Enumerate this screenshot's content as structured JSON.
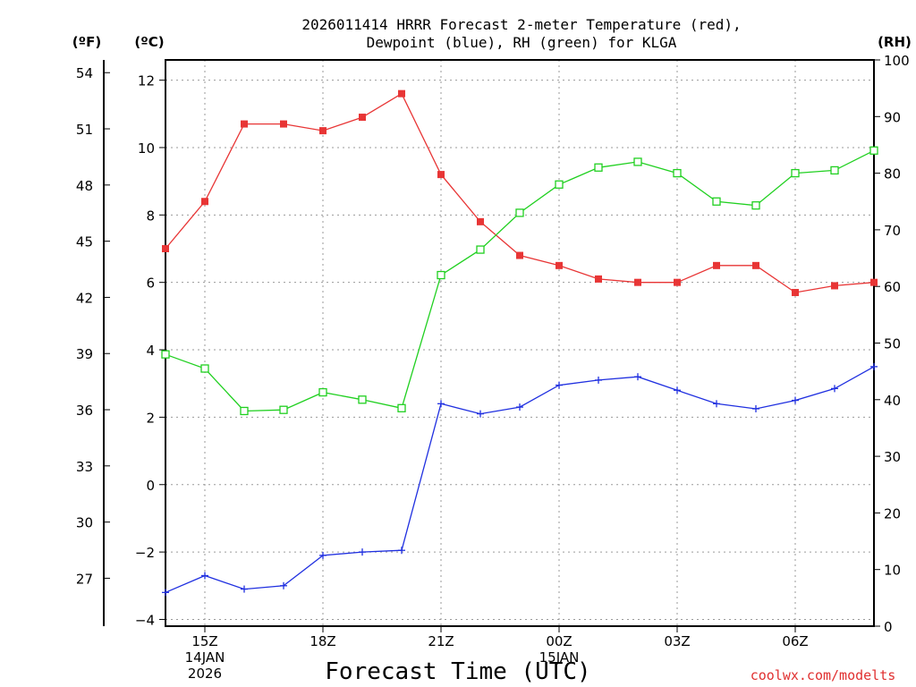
{
  "chart_data": {
    "type": "line",
    "title_lines": [
      "2026011414 HRRR Forecast 2-meter Temperature (red),",
      "Dewpoint (blue), RH (green) for KLGA"
    ],
    "xlabel": "Forecast Time (UTC)",
    "credit": "coolwx.com/modelts",
    "units": {
      "fahrenheit": "(ºF)",
      "celsius": "(ºC)",
      "rh": "(RH)"
    },
    "x_hours": [
      14,
      15,
      16,
      17,
      18,
      19,
      20,
      21,
      22,
      23,
      24,
      25,
      26,
      27,
      28,
      29,
      30,
      31,
      32
    ],
    "xlim": [
      14,
      32
    ],
    "x_ticks": [
      {
        "hour": 15,
        "lines": [
          "15Z",
          "14JAN",
          "2026"
        ]
      },
      {
        "hour": 18,
        "lines": [
          "18Z"
        ]
      },
      {
        "hour": 21,
        "lines": [
          "21Z"
        ]
      },
      {
        "hour": 24,
        "lines": [
          "00Z",
          "15JAN"
        ]
      },
      {
        "hour": 27,
        "lines": [
          "03Z"
        ]
      },
      {
        "hour": 30,
        "lines": [
          "06Z"
        ]
      }
    ],
    "celsius_axis": {
      "ylim": [
        -4.2,
        12.6
      ],
      "ticks": [
        -4,
        -2,
        0,
        2,
        4,
        6,
        8,
        10,
        12
      ]
    },
    "fahrenheit_axis": {
      "ticks": [
        27,
        30,
        33,
        36,
        39,
        42,
        45,
        48,
        51,
        54
      ]
    },
    "rh_axis": {
      "ylim": [
        0,
        100
      ],
      "ticks": [
        0,
        10,
        20,
        30,
        40,
        50,
        60,
        70,
        80,
        90,
        100
      ]
    },
    "series": [
      {
        "name": "2-meter Temperature",
        "axis": "celsius",
        "color": "#e83535",
        "marker": "filled-square",
        "values": [
          7.0,
          8.4,
          10.7,
          10.7,
          10.5,
          10.9,
          11.6,
          9.2,
          7.8,
          6.8,
          6.5,
          6.1,
          6.0,
          6.0,
          6.5,
          6.5,
          5.7,
          5.9,
          6.0
        ]
      },
      {
        "name": "Dewpoint",
        "axis": "celsius",
        "color": "#2030e0",
        "marker": "plus",
        "values": [
          -3.2,
          -2.7,
          -3.1,
          -3.0,
          -2.1,
          -2.0,
          -1.95,
          2.4,
          2.1,
          2.3,
          2.95,
          3.1,
          3.2,
          2.8,
          2.4,
          2.25,
          2.5,
          2.85,
          3.5
        ]
      },
      {
        "name": "RH",
        "axis": "rh",
        "color": "#20d020",
        "marker": "open-square",
        "values": [
          48,
          45.5,
          38,
          38.2,
          41.3,
          40,
          38.5,
          62,
          66.5,
          73,
          78,
          81,
          82,
          80,
          75,
          74.3,
          80,
          80.5,
          84
        ]
      }
    ]
  }
}
